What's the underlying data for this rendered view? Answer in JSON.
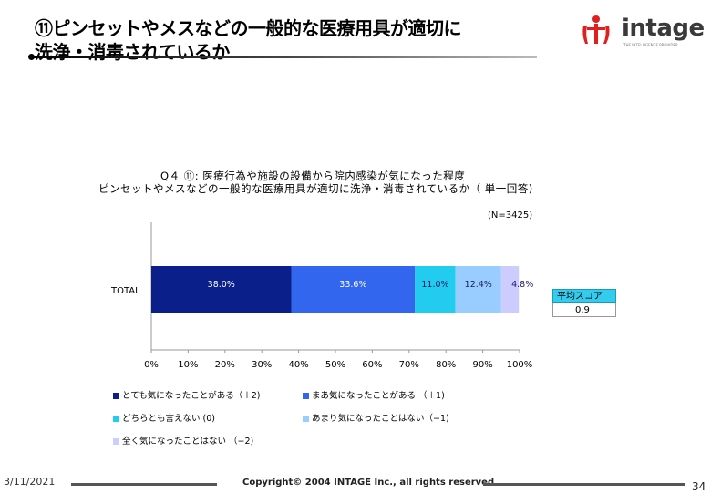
{
  "slide": {
    "title_line1": "⑪ピンセットやメスなどの一般的な医療用具が適切に",
    "title_line2": "洗浄・消毒されているか",
    "logo_text": "intage",
    "logo_tagline": "THE INTELLIGENCE PROVIDER"
  },
  "footer": {
    "date": "3/11/2021",
    "copyright": "Copyright© 2004 INTAGE Inc., all rights reserved.",
    "page": "34"
  },
  "question": {
    "line1": "Q４ ⑪:  医療行為や施設の設備から院内感染が気になった程度",
    "line2": "ピンセットやメスなどの一般的な医療用具が適切に洗浄・消毒されているか（ 単一回答)",
    "sample": "(N=3425)"
  },
  "score": {
    "label": "平均スコア",
    "value": "0.9"
  },
  "chart_data": {
    "type": "bar",
    "orientation": "horizontal",
    "stacked": true,
    "categories": [
      "TOTAL"
    ],
    "series": [
      {
        "name": "とても気になったことがある（＋2)",
        "values": [
          38.0
        ],
        "label": "38.0%",
        "color": "#0b1f8a"
      },
      {
        "name": "まあ気になったことがある  （＋1)",
        "values": [
          33.6
        ],
        "label": "33.6%",
        "color": "#3366ee"
      },
      {
        "name": "どちらとも言えない      (0)",
        "values": [
          11.0
        ],
        "label": "11.0%",
        "color": "#22ccee"
      },
      {
        "name": "あまり気になったことはない（−1)",
        "values": [
          12.4
        ],
        "label": "12.4%",
        "color": "#99ccff"
      },
      {
        "name": "全く気になったことはない  （−2)",
        "values": [
          4.8
        ],
        "label": "4.8%",
        "color": "#ccccff"
      }
    ],
    "xlim": [
      0,
      100
    ],
    "xticks": [
      "0%",
      "10%",
      "20%",
      "30%",
      "40%",
      "50%",
      "60%",
      "70%",
      "80%",
      "90%",
      "100%"
    ],
    "legend_position": "bottom"
  }
}
